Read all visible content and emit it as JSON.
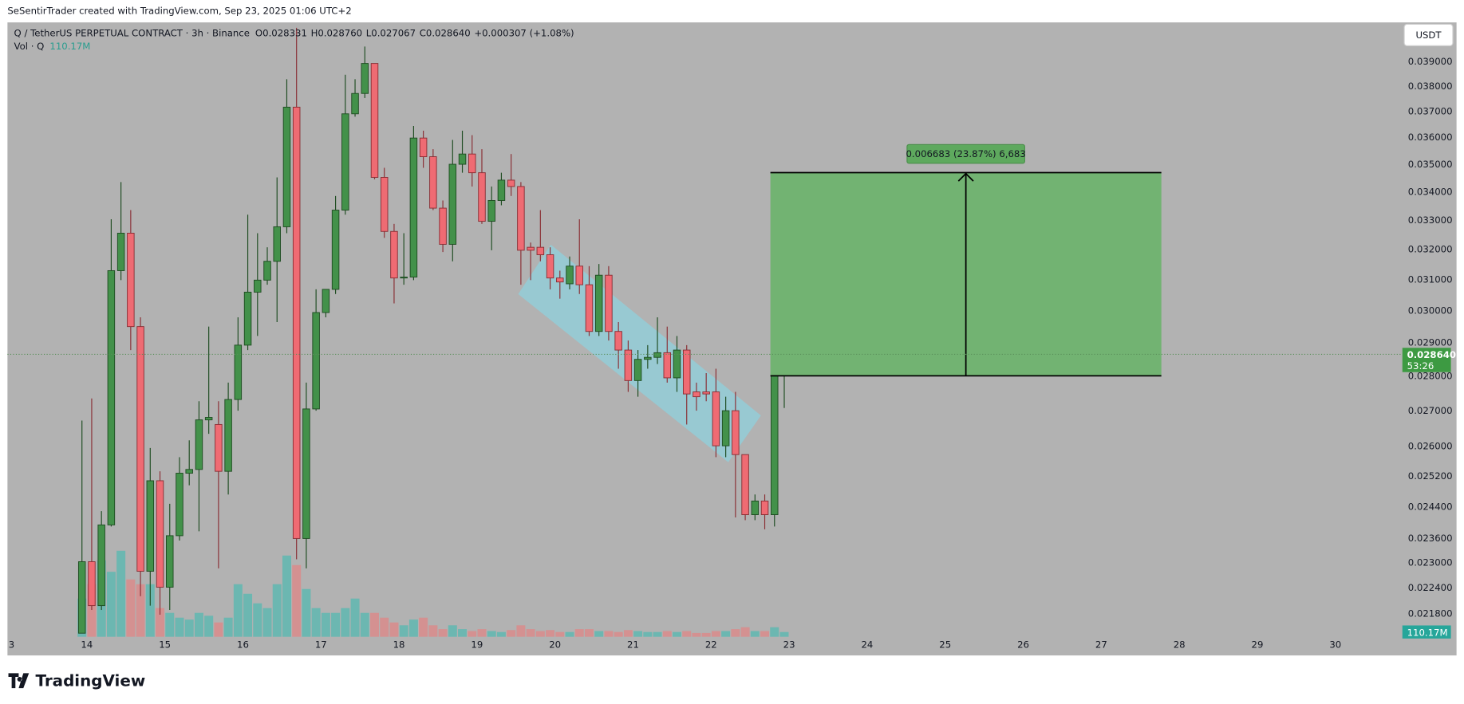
{
  "header": {
    "credit": "SeSentirTrader created with TradingView.com, Sep 23, 2025 01:06 UTC+2",
    "symbol": "Q / TetherUS PERPETUAL CONTRACT · 3h · Binance",
    "open": "O0.028331",
    "high": "H0.028760",
    "low": "L0.027067",
    "close": "C0.028640",
    "change": "+0.000307 (+1.08%)",
    "vol_name": "Vol · Q",
    "currency": "USDT",
    "logo": "TradingView"
  },
  "chart_data": {
    "type": "candlestick",
    "log_scale": true,
    "grid": false,
    "xlim": [
      12.983,
      30.835
    ],
    "xticks": [
      {
        "value": 13,
        "label": "3"
      },
      14,
      15,
      16,
      17,
      18,
      19,
      20,
      21,
      22,
      23,
      24,
      25,
      26,
      27,
      28,
      29,
      30
    ],
    "ylim": [
      0.02127,
      0.04063
    ],
    "yticks": [
      {
        "value": 0.039,
        "label": "0.039000"
      },
      {
        "value": 0.038,
        "label": "0.038000"
      },
      {
        "value": 0.037,
        "label": "0.037000"
      },
      {
        "value": 0.036,
        "label": "0.036000"
      },
      {
        "value": 0.035,
        "label": "0.035000"
      },
      {
        "value": 0.034,
        "label": "0.034000"
      },
      {
        "value": 0.033,
        "label": "0.033000"
      },
      {
        "value": 0.032,
        "label": "0.032000"
      },
      {
        "value": 0.031,
        "label": "0.031000"
      },
      {
        "value": 0.03,
        "label": "0.030000"
      },
      {
        "value": 0.029,
        "label": "0.029000"
      },
      {
        "value": 0.028,
        "label": "0.028000"
      },
      {
        "value": 0.027,
        "label": "0.027000"
      },
      {
        "value": 0.026,
        "label": "0.026000"
      },
      {
        "value": 0.0252,
        "label": "0.025200"
      },
      {
        "value": 0.0244,
        "label": "0.024400"
      },
      {
        "value": 0.0236,
        "label": "0.023600"
      },
      {
        "value": 0.023,
        "label": "0.023000"
      },
      {
        "value": 0.0224,
        "label": "0.022400"
      },
      {
        "value": 0.0218,
        "label": "0.021800"
      }
    ],
    "up_color": "#43914a",
    "down_color": "#ef6b73",
    "volume_up_color": "#5fb7b0",
    "volume_down_color": "#d98b8b",
    "x": [
      13.9375,
      14.0625,
      14.1875,
      14.3125,
      14.4375,
      14.5625,
      14.6875,
      14.8125,
      14.9375,
      15.0625,
      15.1875,
      15.3125,
      15.4375,
      15.5625,
      15.6875,
      15.8125,
      15.9375,
      16.0625,
      16.1875,
      16.3125,
      16.4375,
      16.5625,
      16.6875,
      16.8125,
      16.9375,
      17.0625,
      17.1875,
      17.3125,
      17.4375,
      17.5625,
      17.6875,
      17.8125,
      17.9375,
      18.0625,
      18.1875,
      18.3125,
      18.4375,
      18.5625,
      18.6875,
      18.8125,
      18.9375,
      19.0625,
      19.1875,
      19.3125,
      19.4375,
      19.5625,
      19.6875,
      19.8125,
      19.9375,
      20.0625,
      20.1875,
      20.3125,
      20.4375,
      20.5625,
      20.6875,
      20.8125,
      20.9375,
      21.0625,
      21.1875,
      21.3125,
      21.4375,
      21.5625,
      21.6875,
      21.8125,
      21.9375,
      22.0625,
      22.1875,
      22.3125,
      22.4375,
      22.5625,
      22.6875,
      22.8125,
      22.9375
    ],
    "open": [
      0.02135,
      0.02302,
      0.02198,
      0.02393,
      0.03128,
      0.03254,
      0.02949,
      0.02279,
      0.02507,
      0.02241,
      0.02366,
      0.02527,
      0.02537,
      0.02673,
      0.0266,
      0.02532,
      0.02731,
      0.02892,
      0.03058,
      0.03097,
      0.03159,
      0.03276,
      0.03716,
      0.02359,
      0.02704,
      0.02993,
      0.03067,
      0.03334,
      0.0369,
      0.0377,
      0.03891,
      0.03451,
      0.0326,
      0.03104,
      0.03107,
      0.03597,
      0.03527,
      0.03341,
      0.03216,
      0.03499,
      0.03537,
      0.03468,
      0.03295,
      0.03368,
      0.03441,
      0.03418,
      0.03206,
      0.03206,
      0.03181,
      0.03104,
      0.03085,
      0.03143,
      0.03082,
      0.02934,
      0.03113,
      0.02934,
      0.02877,
      0.02786,
      0.02849,
      0.02855,
      0.02869,
      0.02794,
      0.02877,
      0.02753,
      0.02753,
      0.02753,
      0.02601,
      0.02699,
      0.02577,
      0.02419,
      0.02454,
      0.02419,
      0.028331
    ],
    "high": [
      0.02671,
      0.02734,
      0.02428,
      0.03302,
      0.03434,
      0.03334,
      0.02978,
      0.02595,
      0.02532,
      0.02447,
      0.0257,
      0.02616,
      0.02726,
      0.02949,
      0.02726,
      0.0278,
      0.02978,
      0.03318,
      0.03254,
      0.03206,
      0.03451,
      0.03827,
      0.0404,
      0.0278,
      0.03067,
      0.03058,
      0.03384,
      0.03845,
      0.03827,
      0.03961,
      0.03891,
      0.03486,
      0.03286,
      0.03254,
      0.03643,
      0.03625,
      0.03555,
      0.03368,
      0.0359,
      0.03625,
      0.03608,
      0.03555,
      0.03418,
      0.03468,
      0.03537,
      0.03434,
      0.03222,
      0.03334,
      0.03206,
      0.03128,
      0.03175,
      0.03302,
      0.03143,
      0.0315,
      0.03143,
      0.02963,
      0.02906,
      0.02877,
      0.02892,
      0.02978,
      0.02949,
      0.0292,
      0.02892,
      0.0278,
      0.02808,
      0.02821,
      0.02739,
      0.02753,
      0.02577,
      0.02471,
      0.02471,
      0.02892,
      0.02876
    ],
    "low": [
      0.02135,
      0.02188,
      0.02188,
      0.02389,
      0.03097,
      0.02877,
      0.0222,
      0.02198,
      0.02177,
      0.02188,
      0.02354,
      0.02495,
      0.02377,
      0.02634,
      0.02286,
      0.02471,
      0.02699,
      0.02877,
      0.0292,
      0.03082,
      0.02963,
      0.03254,
      0.02308,
      0.02286,
      0.02699,
      0.02978,
      0.03052,
      0.03318,
      0.03679,
      0.03752,
      0.03444,
      0.03238,
      0.03022,
      0.03082,
      0.03097,
      0.03486,
      0.03334,
      0.0319,
      0.03159,
      0.03468,
      0.03418,
      0.03286,
      0.03196,
      0.03351,
      0.03384,
      0.03082,
      0.03097,
      0.03159,
      0.03067,
      0.03037,
      0.03067,
      0.03052,
      0.0292,
      0.0292,
      0.02906,
      0.02821,
      0.02753,
      0.02739,
      0.02821,
      0.02835,
      0.0278,
      0.02753,
      0.0266,
      0.02699,
      0.02726,
      0.0257,
      0.0257,
      0.02412,
      0.02405,
      0.02405,
      0.02382,
      0.02389,
      0.027067
    ],
    "close": [
      0.02302,
      0.02198,
      0.02393,
      0.03128,
      0.03254,
      0.02949,
      0.02279,
      0.02507,
      0.02241,
      0.02366,
      0.02527,
      0.02537,
      0.02673,
      0.0268,
      0.02532,
      0.02731,
      0.02892,
      0.03058,
      0.03097,
      0.03159,
      0.03276,
      0.03716,
      0.02359,
      0.02704,
      0.02993,
      0.03067,
      0.03334,
      0.0369,
      0.0377,
      0.03891,
      0.03451,
      0.0326,
      0.03104,
      0.03107,
      0.03597,
      0.03527,
      0.03341,
      0.03216,
      0.03499,
      0.03537,
      0.03468,
      0.03295,
      0.03368,
      0.03441,
      0.03418,
      0.03196,
      0.03196,
      0.03181,
      0.03104,
      0.03091,
      0.03143,
      0.03082,
      0.02934,
      0.03113,
      0.02934,
      0.02877,
      0.02786,
      0.02849,
      0.02855,
      0.02869,
      0.02794,
      0.02877,
      0.02747,
      0.02739,
      0.02747,
      0.02601,
      0.02699,
      0.02577,
      0.02419,
      0.02454,
      0.02419,
      0.02835,
      0.02864
    ],
    "volume": [
      880,
      1210,
      1760,
      1496,
      1980,
      1320,
      1210,
      1210,
      660,
      550,
      440,
      396,
      550,
      484,
      330,
      440,
      1210,
      990,
      770,
      660,
      1210,
      1870,
      1650,
      1100,
      660,
      550,
      550,
      660,
      880,
      550,
      550,
      440,
      330,
      264,
      396,
      440,
      264,
      176,
      264,
      176,
      132,
      176,
      132,
      110,
      154,
      264,
      176,
      132,
      154,
      110,
      110,
      176,
      176,
      132,
      132,
      110,
      154,
      132,
      110,
      110,
      132,
      110,
      132,
      88,
      88,
      132,
      132,
      176,
      220,
      132,
      132,
      220,
      110.17
    ],
    "volume_label": "110.17M",
    "price_tag": {
      "label": "0.028640",
      "countdown": "53:26",
      "color": "#3d9a42"
    },
    "measure": {
      "from": 0.028,
      "to": 0.034683,
      "start": 22.76,
      "end": 27.77,
      "label": "0.006683 (23.87%) 6,683",
      "color": "#72b372"
    }
  }
}
